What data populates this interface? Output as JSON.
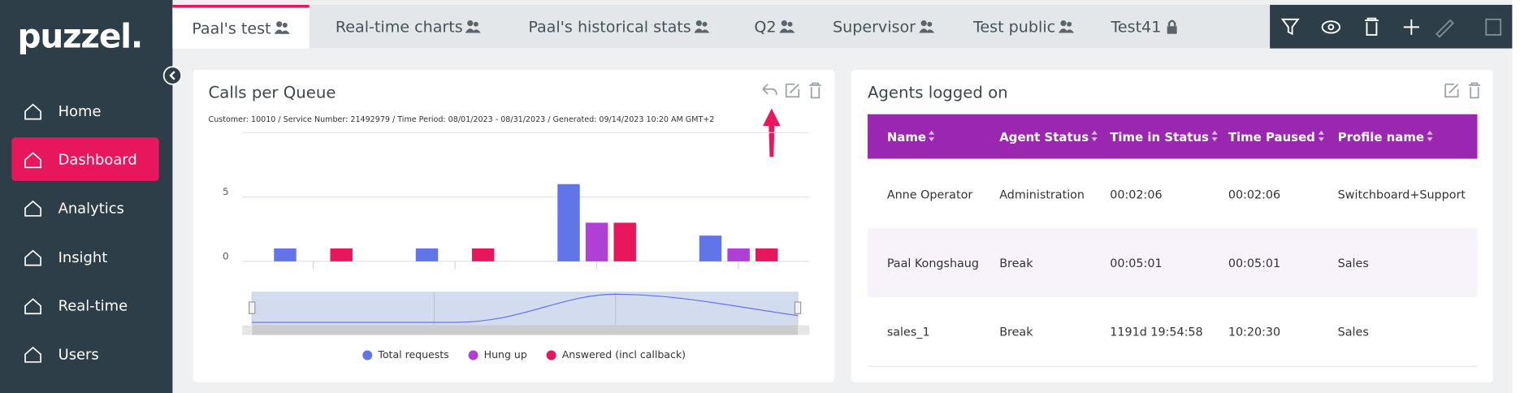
{
  "sidebar": {
    "logo": "puzzel.",
    "items": [
      "Home",
      "Dashboard",
      "Analytics",
      "Insight",
      "Real-time",
      "Users"
    ],
    "active": 1
  },
  "tabs": {
    "items": [
      "Paal's test",
      "Real-time charts",
      "Paal's historical stats",
      "Q2",
      "Supervisor",
      "Test public",
      "Test41"
    ],
    "active": 0
  },
  "widget_calls": {
    "title": "Calls per Queue",
    "subtitle": "Customer: 10010 / Service Number: 21492979 / Time Period: 08/01/2023 - 08/31/2023 / Generated: 09/14/2023 10:20 AM GMT+2"
  },
  "chart_data": {
    "type": "bar",
    "categories": [
      null,
      null,
      null,
      null
    ],
    "series": [
      {
        "name": "Total requests",
        "color": "#6175e8",
        "values": [
          1,
          1,
          6,
          2
        ]
      },
      {
        "name": "Hung up",
        "color": "#b03fd6",
        "values": [
          0,
          0,
          3,
          1
        ]
      },
      {
        "name": "Answered (incl callback)",
        "color": "#e8175d",
        "values": [
          1,
          1,
          3,
          1
        ]
      }
    ],
    "ylim": [
      0,
      10
    ],
    "yticks": [
      0,
      5
    ],
    "grid": true,
    "legend": "bottom"
  },
  "widget_agents": {
    "title": "Agents logged on",
    "table": {
      "columns": [
        "Name",
        "Agent Status",
        "Time in Status",
        "Time Paused",
        "Profile name"
      ],
      "rows": [
        [
          "Anne Operator",
          "Administration",
          "00:02:06",
          "00:02:06",
          "Switchboard+Support"
        ],
        [
          "Paal Kongshaug",
          "Break",
          "00:05:01",
          "00:05:01",
          "Sales"
        ],
        [
          "sales_1",
          "Break",
          "1191d 19:54:58",
          "10:20:30",
          "Sales"
        ]
      ]
    }
  }
}
